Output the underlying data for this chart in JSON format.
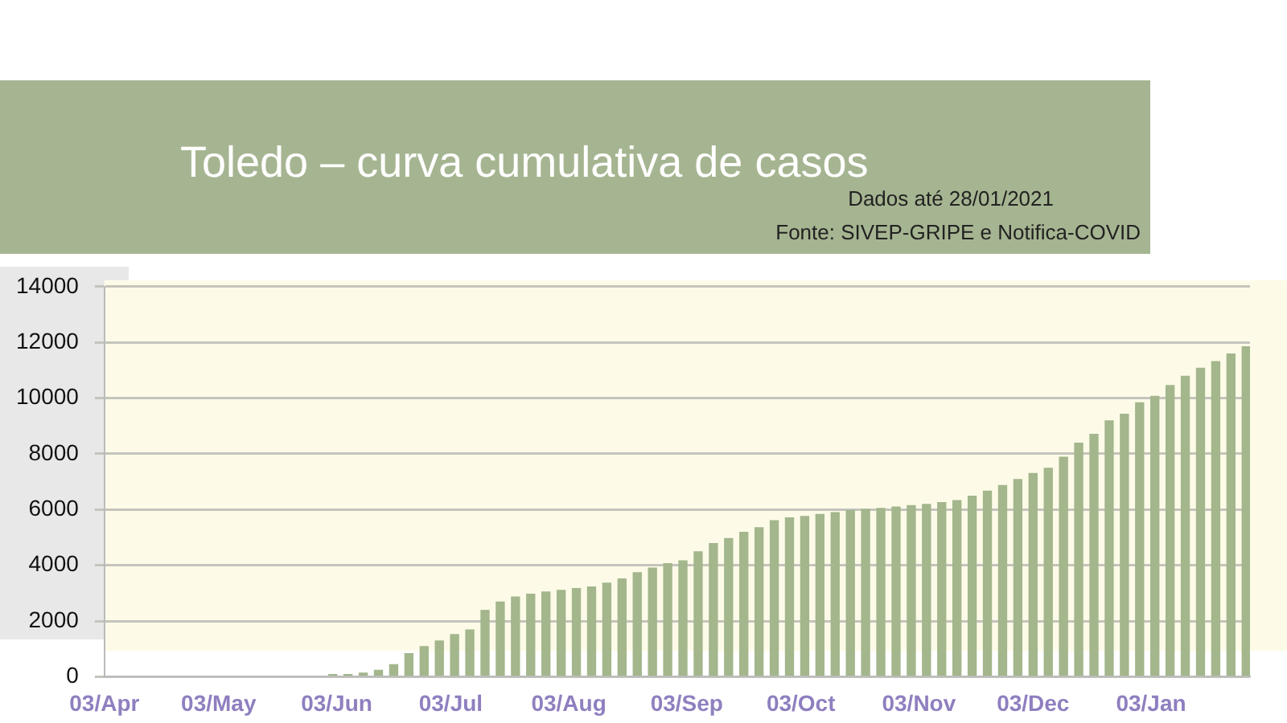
{
  "chart_data": {
    "type": "bar",
    "title": "Toledo – curva cumulativa de casos",
    "annotations": [
      "Dados até 28/01/2021",
      "Fonte: SIVEP-GRIPE e Notifica-COVID"
    ],
    "x": [
      "2020-04-03",
      "2020-04-07",
      "2020-04-11",
      "2020-04-15",
      "2020-04-19",
      "2020-04-23",
      "2020-04-27",
      "2020-05-01",
      "2020-05-05",
      "2020-05-09",
      "2020-05-13",
      "2020-05-17",
      "2020-05-21",
      "2020-05-25",
      "2020-05-29",
      "2020-06-02",
      "2020-06-06",
      "2020-06-10",
      "2020-06-14",
      "2020-06-18",
      "2020-06-22",
      "2020-06-26",
      "2020-06-30",
      "2020-07-04",
      "2020-07-08",
      "2020-07-12",
      "2020-07-16",
      "2020-07-20",
      "2020-07-24",
      "2020-07-28",
      "2020-08-01",
      "2020-08-05",
      "2020-08-09",
      "2020-08-13",
      "2020-08-17",
      "2020-08-21",
      "2020-08-25",
      "2020-08-29",
      "2020-09-02",
      "2020-09-06",
      "2020-09-10",
      "2020-09-14",
      "2020-09-18",
      "2020-09-22",
      "2020-09-26",
      "2020-09-30",
      "2020-10-04",
      "2020-10-08",
      "2020-10-12",
      "2020-10-16",
      "2020-10-20",
      "2020-10-24",
      "2020-10-28",
      "2020-11-01",
      "2020-11-05",
      "2020-11-09",
      "2020-11-13",
      "2020-11-17",
      "2020-11-21",
      "2020-11-25",
      "2020-11-29",
      "2020-12-03",
      "2020-12-07",
      "2020-12-11",
      "2020-12-15",
      "2020-12-19",
      "2020-12-23",
      "2020-12-27",
      "2020-12-31",
      "2021-01-04",
      "2021-01-08",
      "2021-01-12",
      "2021-01-16",
      "2021-01-20",
      "2021-01-24",
      "2021-01-28"
    ],
    "values": [
      0,
      0,
      0,
      0,
      0,
      0,
      0,
      0,
      0,
      0,
      0,
      0,
      0,
      0,
      0,
      100,
      100,
      150,
      250,
      450,
      850,
      1100,
      1300,
      1530,
      1700,
      2400,
      2700,
      2880,
      2980,
      3060,
      3120,
      3180,
      3240,
      3380,
      3530,
      3750,
      3920,
      4080,
      4180,
      4500,
      4800,
      4980,
      5200,
      5370,
      5620,
      5720,
      5770,
      5840,
      5910,
      5990,
      6020,
      6060,
      6110,
      6160,
      6200,
      6270,
      6340,
      6500,
      6680,
      6880,
      7100,
      7310,
      7500,
      7900,
      8400,
      8720,
      9200,
      9440,
      9850,
      10080,
      10470,
      10800,
      11090,
      11330,
      11600,
      11860
    ],
    "color": "#a3b68c",
    "xlim": [
      "2020-04-03",
      "2021-01-29"
    ],
    "xticks": [
      {
        "value": "2020-04-03",
        "label": "03/Apr"
      },
      {
        "value": "2020-05-03",
        "label": "03/May"
      },
      {
        "value": "2020-06-03",
        "label": "03/Jun"
      },
      {
        "value": "2020-07-03",
        "label": "03/Jul"
      },
      {
        "value": "2020-08-03",
        "label": "03/Aug"
      },
      {
        "value": "2020-09-03",
        "label": "03/Sep"
      },
      {
        "value": "2020-10-03",
        "label": "03/Oct"
      },
      {
        "value": "2020-11-03",
        "label": "03/Nov"
      },
      {
        "value": "2020-12-03",
        "label": "03/Dec"
      },
      {
        "value": "2021-01-03",
        "label": "03/Jan"
      }
    ],
    "ylim": [
      0,
      14000
    ],
    "yticks": [
      0,
      2000,
      4000,
      6000,
      8000,
      10000,
      12000,
      14000
    ],
    "grid": "y",
    "legend": false
  }
}
